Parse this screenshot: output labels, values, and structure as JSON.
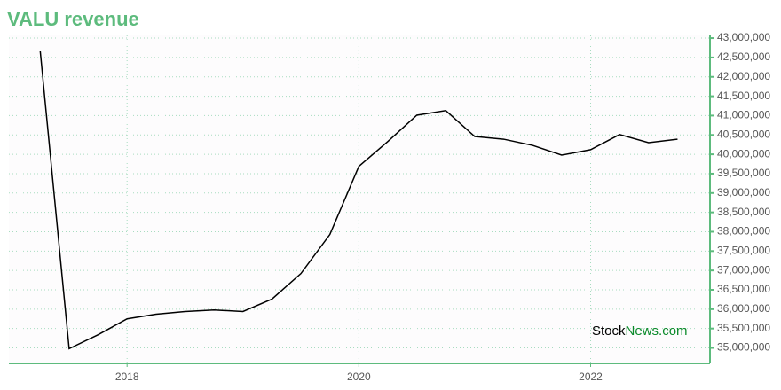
{
  "chart_data": {
    "type": "line",
    "title": "VALU revenue",
    "watermark": [
      "Stock",
      "News.com"
    ],
    "x": [
      2017.25,
      2017.5,
      2017.75,
      2018,
      2018.25,
      2018.5,
      2018.75,
      2019,
      2019.25,
      2019.5,
      2019.75,
      2020,
      2020.25,
      2020.5,
      2020.75,
      2021,
      2021.25,
      2021.5,
      2021.75,
      2022,
      2022.25,
      2022.5,
      2022.75
    ],
    "series": [
      {
        "name": "revenue",
        "color": "#000000",
        "values": [
          42680000,
          34980000,
          35340000,
          35750000,
          35870000,
          35940000,
          35980000,
          35940000,
          36260000,
          36920000,
          37930000,
          39690000,
          40330000,
          41010000,
          41130000,
          40460000,
          40390000,
          40230000,
          39980000,
          40120000,
          40510000,
          40300000,
          40390000
        ]
      }
    ],
    "xlim": [
      2016.98,
      2023.03
    ],
    "xticks": [
      2018,
      2020,
      2022
    ],
    "ylim": [
      34600000,
      43070000
    ],
    "yticks": [
      {
        "value": 35000000,
        "label": "35,000,000"
      },
      {
        "value": 35500000,
        "label": "35,500,000"
      },
      {
        "value": 36000000,
        "label": "36,000,000"
      },
      {
        "value": 36500000,
        "label": "36,500,000"
      },
      {
        "value": 37000000,
        "label": "37,000,000"
      },
      {
        "value": 37500000,
        "label": "37,500,000"
      },
      {
        "value": 38000000,
        "label": "38,000,000"
      },
      {
        "value": 38500000,
        "label": "38,500,000"
      },
      {
        "value": 39000000,
        "label": "39,000,000"
      },
      {
        "value": 39500000,
        "label": "39,500,000"
      },
      {
        "value": 40000000,
        "label": "40,000,000"
      },
      {
        "value": 40500000,
        "label": "40,500,000"
      },
      {
        "value": 41000000,
        "label": "41,000,000"
      },
      {
        "value": 41500000,
        "label": "41,500,000"
      },
      {
        "value": 42000000,
        "label": "42,000,000"
      },
      {
        "value": 42500000,
        "label": "42,500,000"
      },
      {
        "value": 43000000,
        "label": "43,000,000"
      }
    ],
    "grid": true,
    "axis_color": "#5dbb7d",
    "grid_color": "#a8dcc0"
  }
}
